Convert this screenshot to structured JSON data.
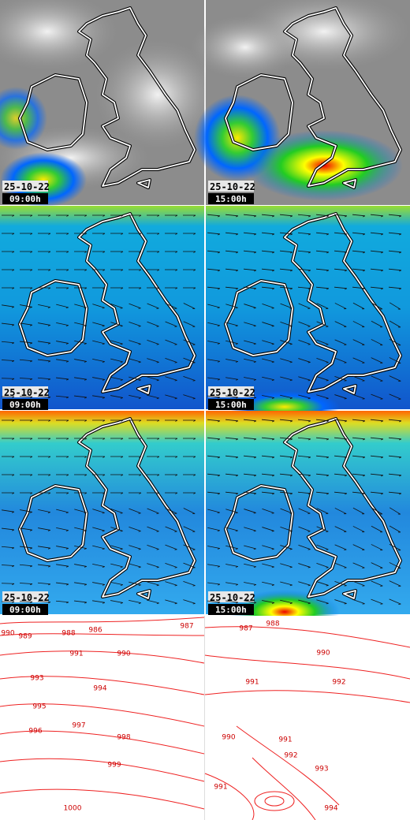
{
  "panels": [
    {
      "date": "25-10-22",
      "time": "09:00h"
    },
    {
      "date": "25-10-22",
      "time": "15:00h"
    },
    {
      "date": "25-10-22",
      "time": "09:00h"
    },
    {
      "date": "25-10-22",
      "time": "15:00h"
    },
    {
      "date": "25-10-22",
      "time": "09:00h"
    },
    {
      "date": "25-10-22",
      "time": "15:00h"
    }
  ],
  "isobars": {
    "left": [
      990,
      989,
      988,
      986,
      987,
      991,
      990,
      993,
      994,
      995,
      996,
      997,
      998,
      999,
      1000
    ],
    "right": [
      987,
      988,
      990,
      991,
      992,
      990,
      991,
      992,
      993,
      991,
      994
    ]
  }
}
